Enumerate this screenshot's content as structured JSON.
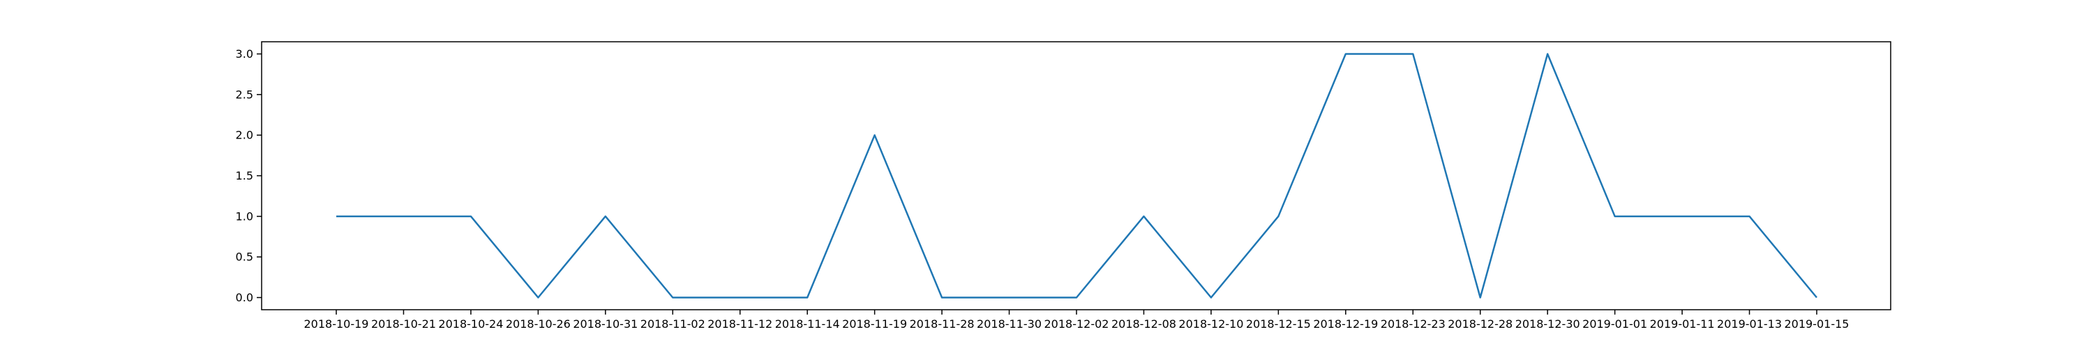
{
  "chart_data": {
    "type": "line",
    "title": "",
    "xlabel": "",
    "ylabel": "",
    "categories": [
      "2018-10-19",
      "2018-10-21",
      "2018-10-24",
      "2018-10-26",
      "2018-10-31",
      "2018-11-02",
      "2018-11-12",
      "2018-11-14",
      "2018-11-19",
      "2018-11-28",
      "2018-11-30",
      "2018-12-02",
      "2018-12-08",
      "2018-12-10",
      "2018-12-15",
      "2018-12-19",
      "2018-12-23",
      "2018-12-28",
      "2018-12-30",
      "2019-01-01",
      "2019-01-11",
      "2019-01-13",
      "2019-01-15"
    ],
    "series": [
      {
        "values": [
          1,
          1,
          1,
          0,
          1,
          0,
          0,
          0,
          2,
          0,
          0,
          0,
          1,
          0,
          1,
          3,
          3,
          0,
          3,
          1,
          1,
          1,
          0
        ],
        "color": "#1f77b4"
      }
    ],
    "ylim": [
      -0.15,
      3.15
    ],
    "yticks": [
      "0.0",
      "0.5",
      "1.0",
      "1.5",
      "2.0",
      "2.5",
      "3.0"
    ],
    "grid": false,
    "legend": "none"
  }
}
